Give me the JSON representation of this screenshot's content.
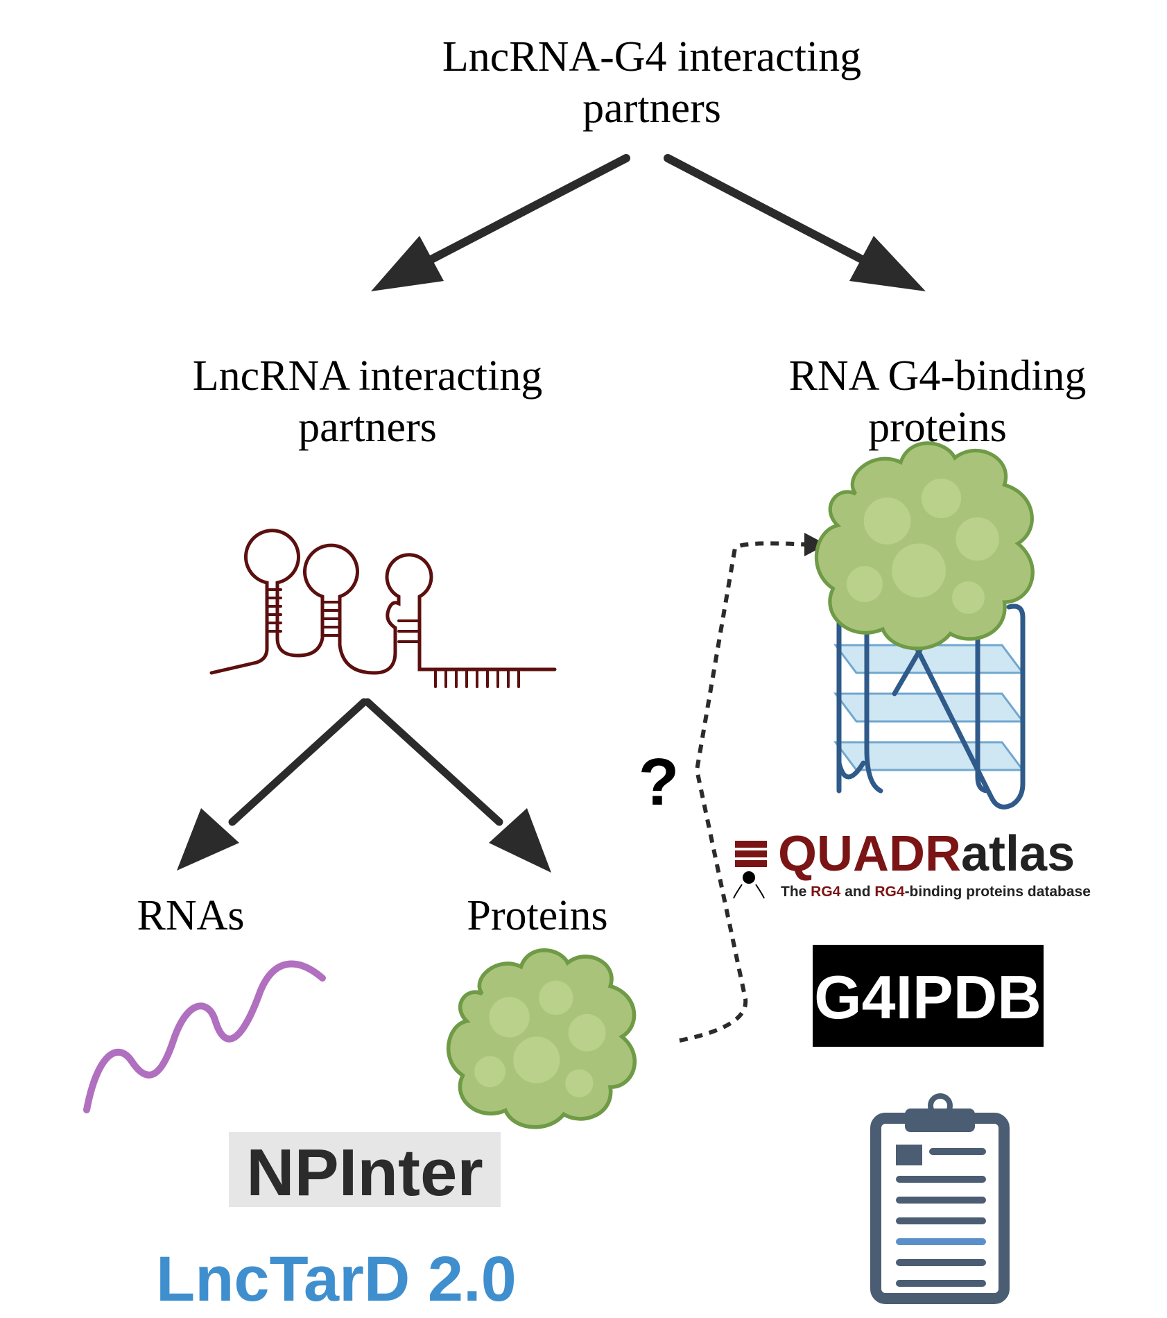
{
  "title": {
    "line1": "LncRNA-G4 interacting",
    "line2": "partners"
  },
  "left_branch": {
    "line1": "LncRNA interacting",
    "line2": "partners",
    "children": {
      "rnas": "RNAs",
      "proteins": "Proteins"
    }
  },
  "right_branch": {
    "line1": "RNA G4-binding",
    "line2": "proteins"
  },
  "question_mark": "?",
  "logos": {
    "quadratlas": {
      "dark_part": "QUADR",
      "light_part": "atlas",
      "tagline": {
        "the": "The ",
        "rg4_a": "RG4",
        "and": " and ",
        "rg4_b": "RG4",
        "rest": "-binding proteins database"
      }
    },
    "g4ipdb": "G4IPDB",
    "npinter": "NPInter",
    "lnctard": "LncTarD 2.0"
  },
  "colors": {
    "arrow": "#2b2b2b",
    "rna_hairpin": "#5c0f0f",
    "rna_strand": "#b06fbf",
    "protein_fill": "#a9c47a",
    "protein_edge": "#6f9a46",
    "g4_frame": "#2f5a8a",
    "g4_plane": "#cfe6f3",
    "quadratlas_red": "#7b1414",
    "lnctard_blue": "#3f8fcf",
    "clipboard": "#4b5d73"
  }
}
